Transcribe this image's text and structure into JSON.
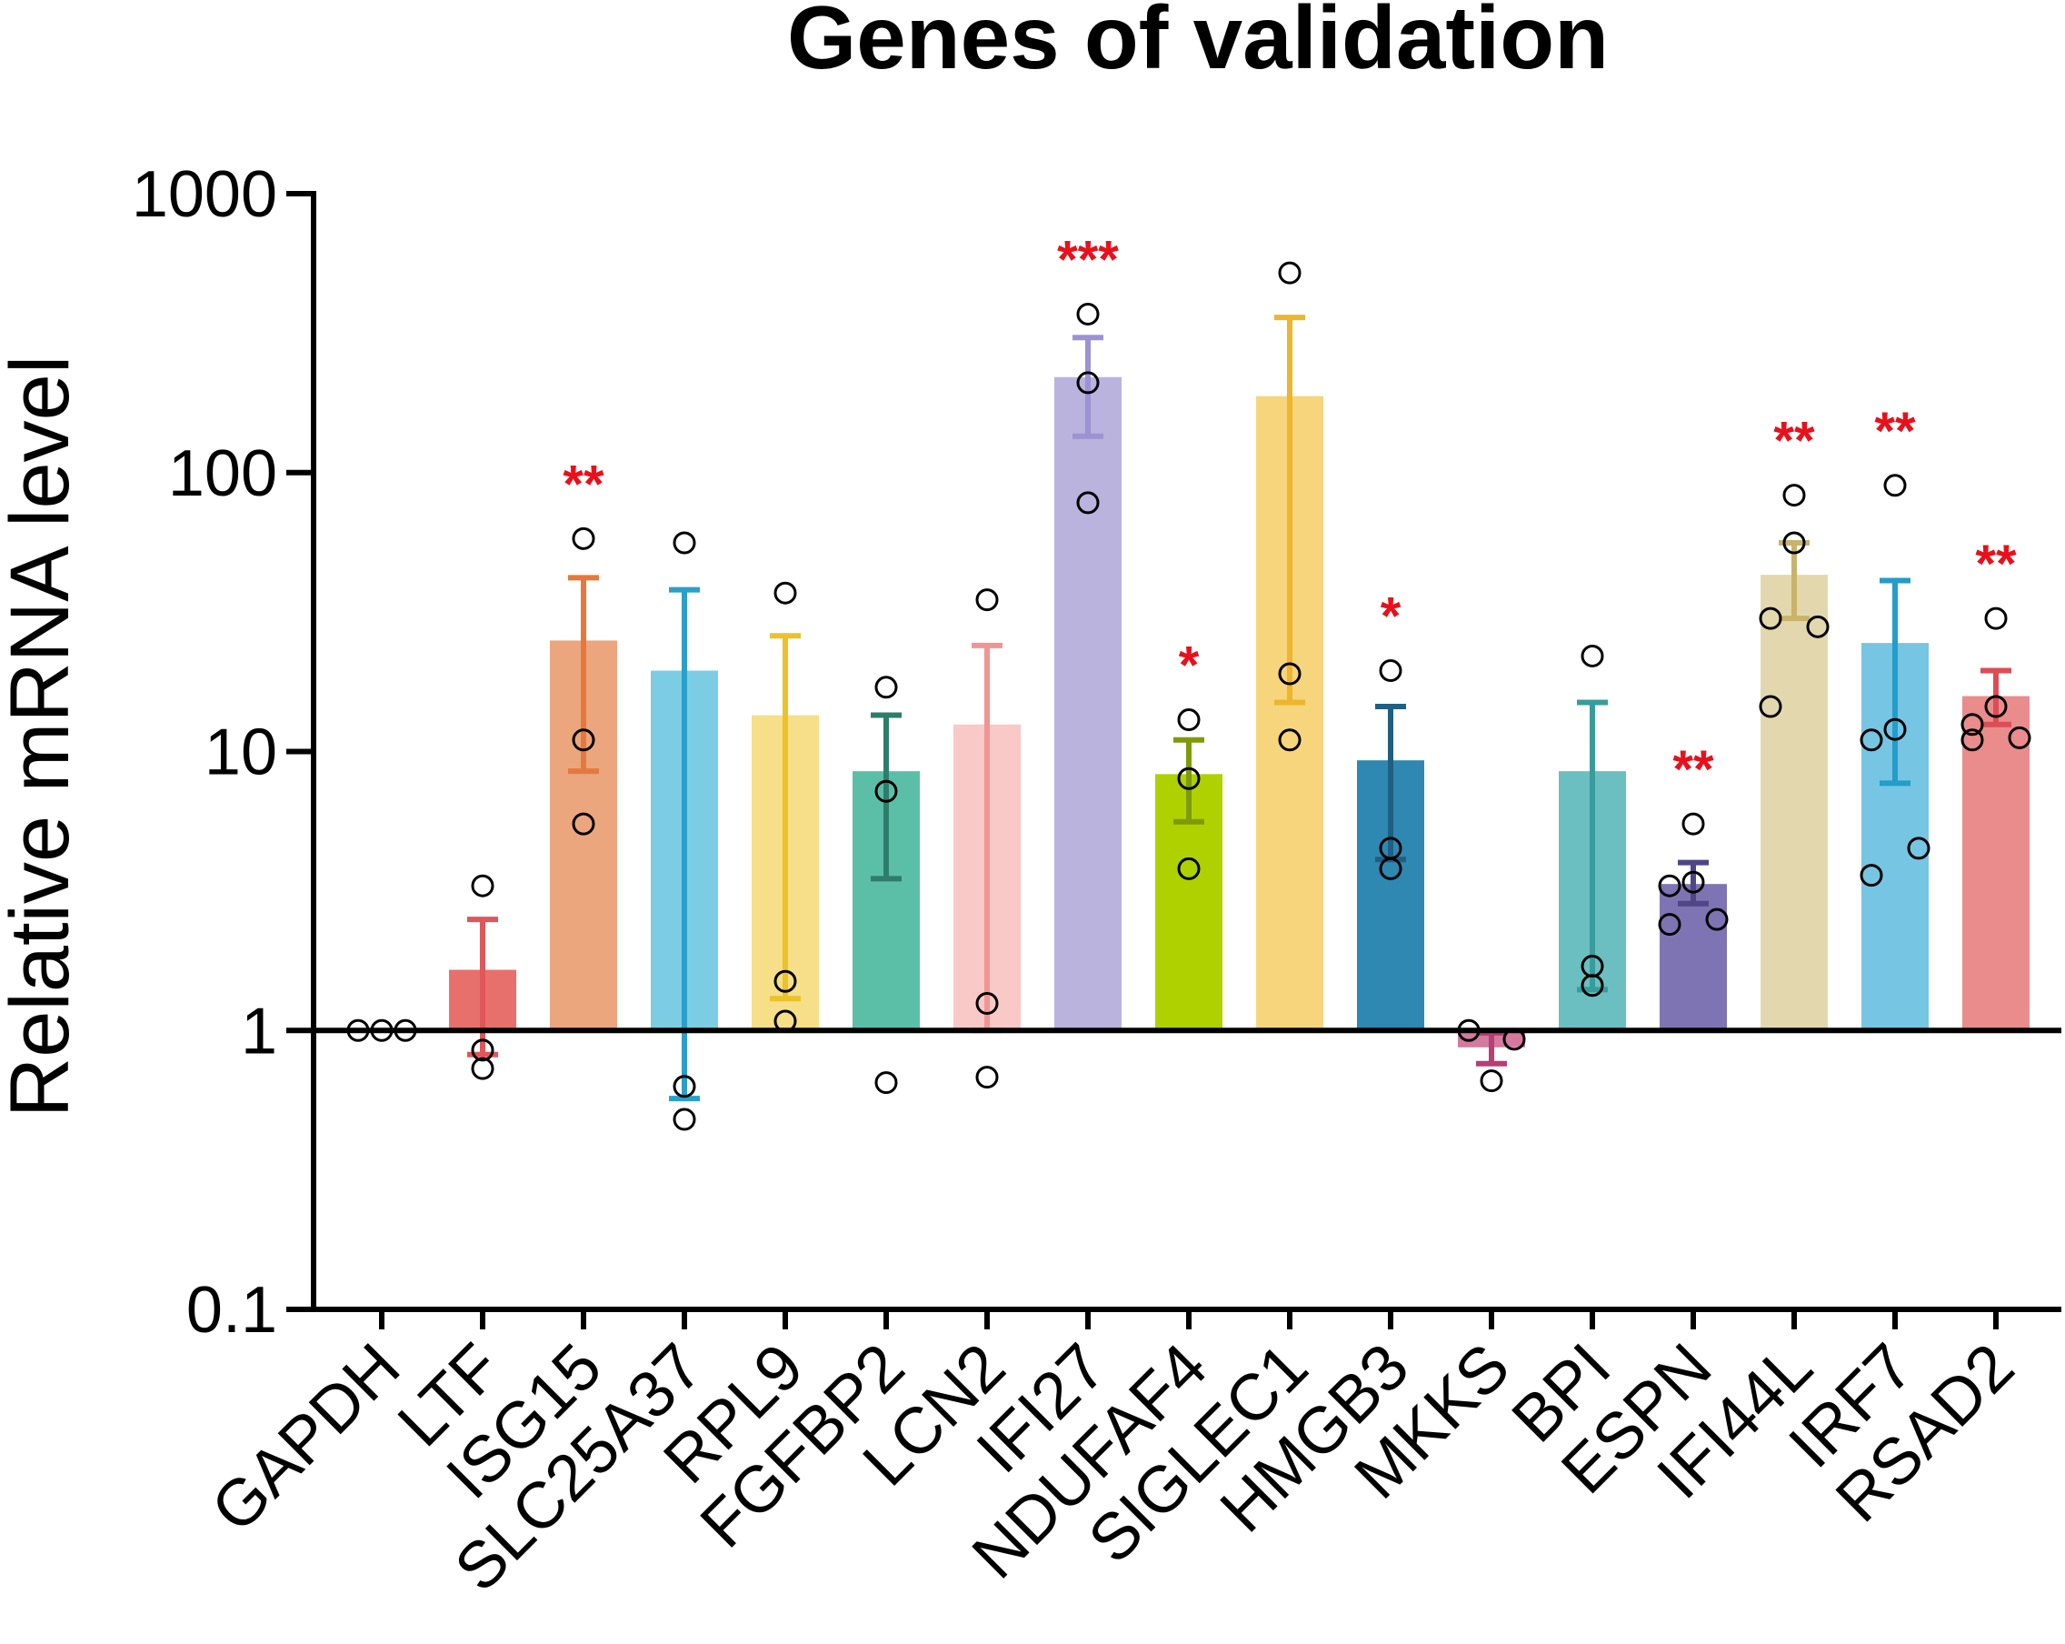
{
  "chart_data": {
    "type": "bar",
    "title": "Genes of validation",
    "xlabel": "",
    "ylabel": "Relative mRNA level",
    "yscale": "log",
    "ylim": [
      0.1,
      1000
    ],
    "yticks": [
      {
        "value": 0.1,
        "label": "0.1"
      },
      {
        "value": 1,
        "label": "1"
      },
      {
        "value": 10,
        "label": "10"
      },
      {
        "value": 100,
        "label": "100"
      },
      {
        "value": 1000,
        "label": "1000"
      }
    ],
    "baseline": 1,
    "bars": [
      {
        "gene": "GAPDH",
        "mean": 1.0,
        "err_low": 1.0,
        "err_high": 1.0,
        "points": [
          1.0,
          1.0,
          1.0
        ],
        "color": "#000000",
        "err_color": "#000000",
        "sig": "",
        "show_bar": false
      },
      {
        "gene": "LTF",
        "mean": 1.65,
        "err_low": 0.82,
        "err_high": 2.5,
        "points": [
          3.3,
          0.85,
          0.73
        ],
        "color": "#e8706c",
        "err_color": "#e0565a",
        "sig": ""
      },
      {
        "gene": "ISG15",
        "mean": 25,
        "err_low": 8.5,
        "err_high": 42,
        "points": [
          58,
          11,
          5.5
        ],
        "color": "#eba67d",
        "err_color": "#e5793d",
        "sig": "**"
      },
      {
        "gene": "SLC25A37",
        "mean": 19.5,
        "err_low": 0.57,
        "err_high": 38,
        "points": [
          56,
          0.63,
          0.48
        ],
        "color": "#7ccde4",
        "err_color": "#2a9fc9",
        "sig": ""
      },
      {
        "gene": "RPL9",
        "mean": 13.5,
        "err_low": 1.3,
        "err_high": 26,
        "points": [
          37,
          1.5,
          1.08
        ],
        "color": "#f6df88",
        "err_color": "#ecc12a",
        "sig": ""
      },
      {
        "gene": "FGFBP2",
        "mean": 8.5,
        "err_low": 3.5,
        "err_high": 13.5,
        "points": [
          17,
          7.2,
          0.65
        ],
        "color": "#5bbfa8",
        "err_color": "#2e7d6c",
        "sig": ""
      },
      {
        "gene": "LCN2",
        "mean": 12.5,
        "err_low": 1.0,
        "err_high": 24,
        "points": [
          35,
          1.25,
          0.68
        ],
        "color": "#f9c9c7",
        "err_color": "#f09593",
        "sig": ""
      },
      {
        "gene": "IFI27",
        "mean": 220,
        "err_low": 135,
        "err_high": 305,
        "points": [
          370,
          210,
          78
        ],
        "color": "#b9b3de",
        "err_color": "#9d92d2",
        "sig": "***"
      },
      {
        "gene": "NDUFAF4",
        "mean": 8.3,
        "err_low": 5.6,
        "err_high": 11,
        "points": [
          13,
          8,
          3.8
        ],
        "color": "#b0d100",
        "err_color": "#7f9a08",
        "sig": "*"
      },
      {
        "gene": "SIGLEC1",
        "mean": 188,
        "err_low": 15,
        "err_high": 360,
        "points": [
          520,
          19,
          11
        ],
        "color": "#f6d57c",
        "err_color": "#eeb52d",
        "sig": ""
      },
      {
        "gene": "HMGB3",
        "mean": 9.3,
        "err_low": 4.1,
        "err_high": 14.5,
        "points": [
          19.5,
          4.5,
          3.8
        ],
        "color": "#2e88b1",
        "err_color": "#1f5f82",
        "sig": "*"
      },
      {
        "gene": "MKKS",
        "mean": 0.87,
        "err_low": 0.76,
        "err_high": 0.98,
        "points": [
          1.0,
          0.93,
          0.66
        ],
        "color": "#d47a9e",
        "err_color": "#b83e74",
        "sig": ""
      },
      {
        "gene": "BPI",
        "mean": 8.5,
        "err_low": 1.4,
        "err_high": 15,
        "points": [
          22,
          1.7,
          1.45
        ],
        "color": "#6bbfc0",
        "err_color": "#389c9d",
        "sig": ""
      },
      {
        "gene": "ESPN",
        "mean": 3.35,
        "err_low": 2.85,
        "err_high": 4.0,
        "points": [
          5.5,
          3.4,
          3.3,
          2.5,
          2.4
        ],
        "color": "#7e74b3",
        "err_color": "#4f4686",
        "sig": "**"
      },
      {
        "gene": "IFI44L",
        "mean": 43,
        "err_low": 30,
        "err_high": 56,
        "points": [
          83,
          56,
          30,
          28,
          14.5
        ],
        "color": "#e3d8ad",
        "err_color": "#c9b36a",
        "sig": "**"
      },
      {
        "gene": "IRF7",
        "mean": 24.5,
        "err_low": 7.7,
        "err_high": 41,
        "points": [
          90,
          12,
          11,
          4.5,
          3.6
        ],
        "color": "#76c5e2",
        "err_color": "#239dc9",
        "sig": "**"
      },
      {
        "gene": "RSAD2",
        "mean": 15.8,
        "err_low": 12.5,
        "err_high": 19.5,
        "points": [
          30,
          14.5,
          12.5,
          11.2,
          11
        ],
        "color": "#ea8c8c",
        "err_color": "#dd4d55",
        "sig": "**"
      }
    ]
  }
}
